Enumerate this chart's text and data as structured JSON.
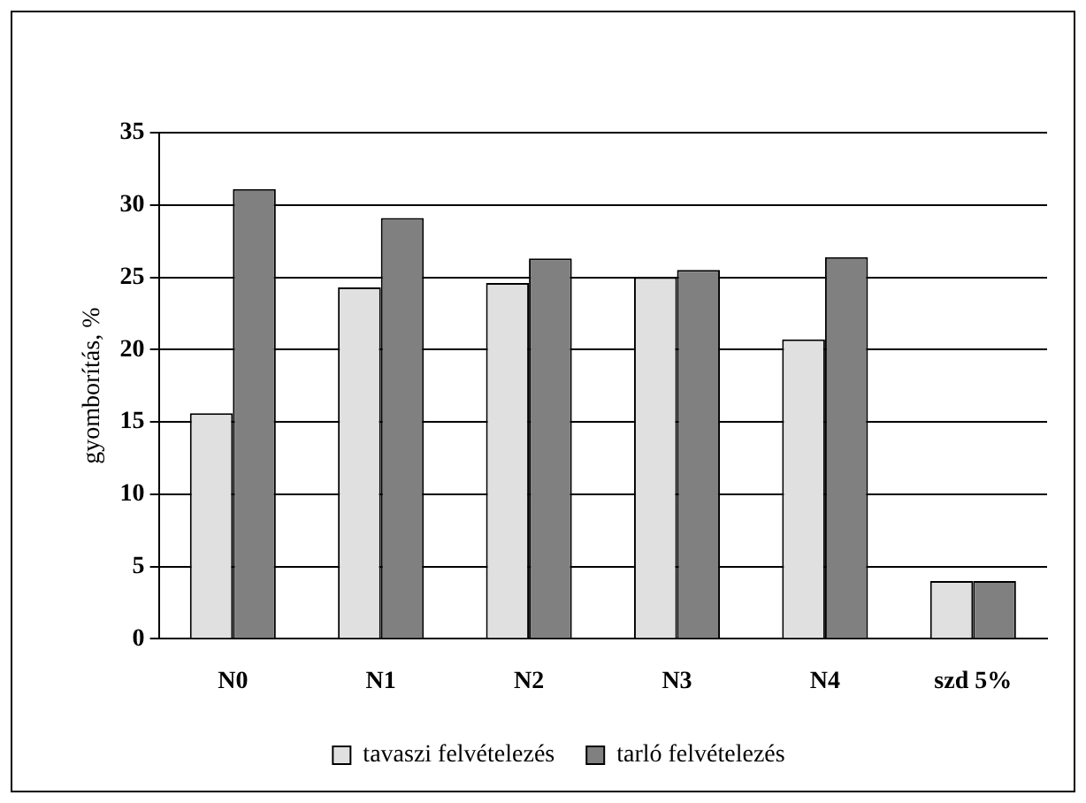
{
  "chart_data": {
    "type": "bar",
    "ylabel": "gyomborítás, %",
    "categories": [
      "N0",
      "N1",
      "N2",
      "N3",
      "N4",
      "szd 5%"
    ],
    "series": [
      {
        "name": "tavaszi felvételezés",
        "color": "#e0e0e0",
        "values": [
          15.6,
          24.3,
          24.6,
          25.0,
          20.7,
          4.0
        ]
      },
      {
        "name": "tarló felvételezés",
        "color": "#808080",
        "values": [
          31.1,
          29.1,
          26.3,
          25.5,
          26.4,
          4.0
        ]
      }
    ],
    "ylim": [
      0,
      35
    ],
    "yticks": [
      0,
      5,
      10,
      15,
      20,
      25,
      30,
      35
    ],
    "grid": "y",
    "legend": "bottom"
  }
}
